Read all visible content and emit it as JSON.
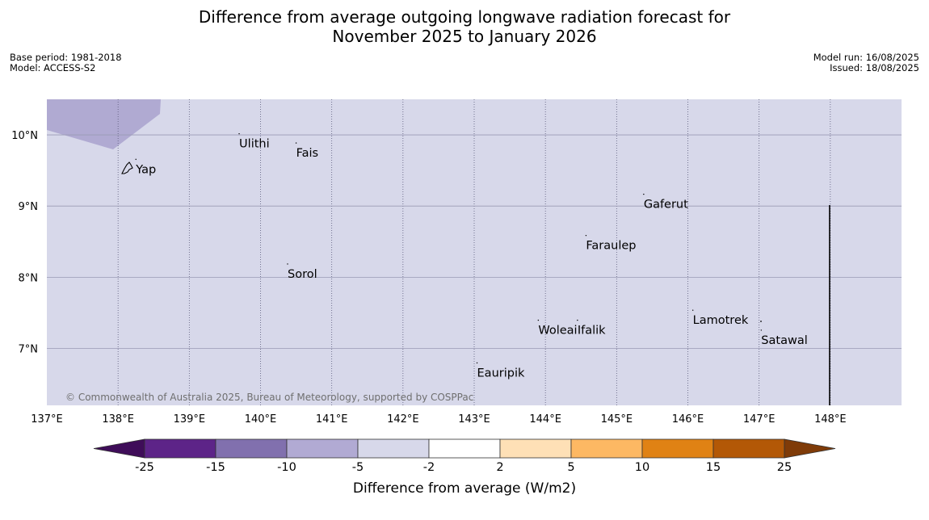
{
  "title_line1": "Difference from average outgoing longwave radiation forecast for",
  "title_line2": "November 2025 to January 2026",
  "base_period": "Base period: 1981-2018",
  "model": "Model: ACCESS-S2",
  "model_run": "Model run: 16/08/2025",
  "issued": "Issued: 18/08/2025",
  "copyright": "© Commonwealth of Australia 2025, Bureau of Meteorology, supported by COSPPac",
  "map": {
    "lon_range": [
      137,
      149
    ],
    "lat_range": [
      6.2,
      10.5
    ],
    "background_color": "#d7d8ea",
    "anomaly_patch_color": "#b0aad2",
    "lon_ticks": [
      {
        "value": 137,
        "label": "137°E"
      },
      {
        "value": 138,
        "label": "138°E"
      },
      {
        "value": 139,
        "label": "139°E"
      },
      {
        "value": 140,
        "label": "140°E"
      },
      {
        "value": 141,
        "label": "141°E"
      },
      {
        "value": 142,
        "label": "142°E"
      },
      {
        "value": 143,
        "label": "143°E"
      },
      {
        "value": 144,
        "label": "144°E"
      },
      {
        "value": 145,
        "label": "145°E"
      },
      {
        "value": 146,
        "label": "146°E"
      },
      {
        "value": 147,
        "label": "147°E"
      },
      {
        "value": 148,
        "label": "148°E"
      }
    ],
    "lat_ticks": [
      {
        "value": 10,
        "label": "10°N"
      },
      {
        "value": 9,
        "label": "9°N"
      },
      {
        "value": 8,
        "label": "8°N"
      },
      {
        "value": 7,
        "label": "7°N"
      }
    ],
    "places": [
      {
        "name": "Yap",
        "lon": 138.25,
        "lat": 9.52
      },
      {
        "name": "Ulithi",
        "lon": 139.7,
        "lat": 9.88
      },
      {
        "name": "Fais",
        "lon": 140.5,
        "lat": 9.75
      },
      {
        "name": "Gaferut",
        "lon": 145.38,
        "lat": 9.03
      },
      {
        "name": "Faraulep",
        "lon": 144.57,
        "lat": 8.45
      },
      {
        "name": "Sorol",
        "lon": 140.38,
        "lat": 8.05
      },
      {
        "name": "Lamotrek",
        "lon": 146.07,
        "lat": 7.4
      },
      {
        "name": "Woleai",
        "lon": 143.9,
        "lat": 7.26
      },
      {
        "name": "Ifalik",
        "lon": 144.45,
        "lat": 7.26
      },
      {
        "name": "Satawal",
        "lon": 147.03,
        "lat": 7.12
      },
      {
        "name": "Eauripik",
        "lon": 143.04,
        "lat": 6.66
      }
    ]
  },
  "colorbar": {
    "title": "Difference from average (W/m2)",
    "ticks": [
      "-25",
      "-15",
      "-10",
      "-5",
      "-2",
      "2",
      "5",
      "10",
      "15",
      "25"
    ],
    "colors": [
      "#3f0d59",
      "#5d2488",
      "#8170ae",
      "#b1aad3",
      "#d7d8ea",
      "#ffffff",
      "#fee0b6",
      "#fdb863",
      "#e08214",
      "#b35806",
      "#7f3b08"
    ]
  }
}
